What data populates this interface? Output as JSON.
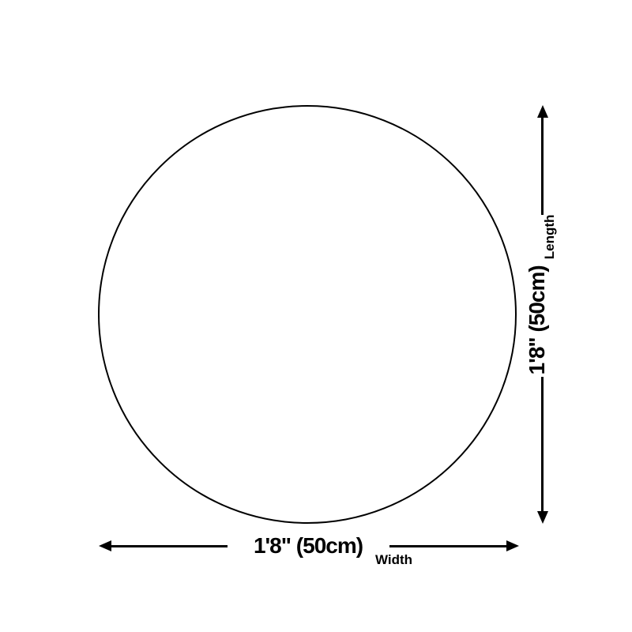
{
  "diagram": {
    "shape": "circle",
    "background_color": "#ffffff",
    "stroke_color": "#000000",
    "width_dimension": {
      "value": "1'8\" (50cm)",
      "label": "Width"
    },
    "length_dimension": {
      "value": "1'8\" (50cm)",
      "label": "Length"
    }
  }
}
